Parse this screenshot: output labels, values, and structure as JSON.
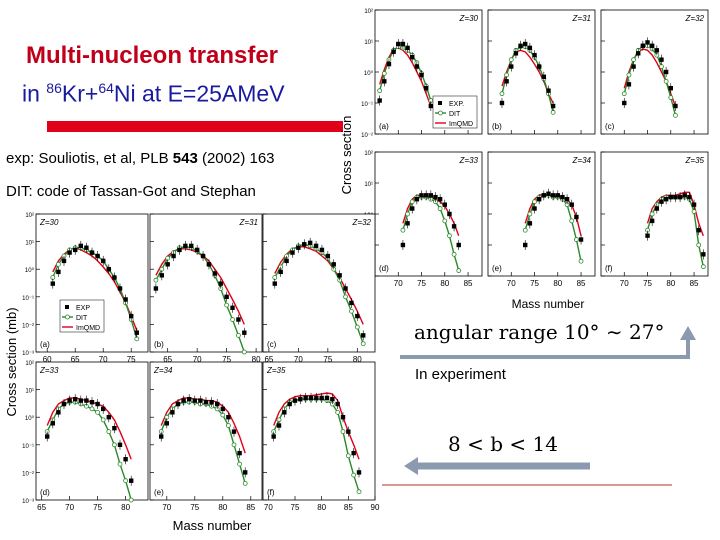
{
  "slide": {
    "title_line1": "Multi-nucleon transfer",
    "title_line2_prefix": "in ",
    "title_kr_mass": "86",
    "title_kr": "Kr+",
    "title_ni_mass": "64",
    "title_ni_rest": "Ni at E=25AMeV",
    "ref_exp_prefix": "exp: Souliotis, et al, PLB ",
    "ref_exp_volume": "543",
    "ref_exp_suffix": " (2002) 163",
    "ref_dit": "DIT: code of Tassan-Got and Stephan",
    "angular_range": "angular range 10° ∼ 27°",
    "in_experiment": "In experiment",
    "impact_range": "8 < b < 14"
  },
  "colors": {
    "exp": "#000000",
    "dit": "#2a8a2a",
    "imqmd": "#e0001a",
    "title": "#c0001a"
  },
  "chart_data": [
    {
      "type": "scatter",
      "figure": "top-right",
      "ylabel": "Cross section",
      "xlabel": "Mass number",
      "legend_entries": [
        "EXP.",
        "DIT",
        "ImQMD"
      ],
      "legend_placement": "bottom-right of panel (a)",
      "y_scale": "log",
      "y_tick_labels": [
        "10²",
        "10¹",
        "10⁰",
        "10⁻¹",
        "10⁻²"
      ],
      "ylim": [
        0.01,
        100
      ],
      "x_ticks": [
        70,
        75,
        80,
        85
      ],
      "xlim": [
        65,
        88
      ],
      "panels": [
        {
          "label": "(a)",
          "z_label": "Z=30",
          "x": [
            66,
            67,
            68,
            69,
            70,
            71,
            72,
            73,
            74,
            75,
            76,
            77
          ],
          "exp": [
            0.12,
            0.5,
            1.8,
            4.5,
            8,
            8,
            6,
            3,
            1.5,
            0.8,
            0.3,
            0.08
          ],
          "dit": [
            0.25,
            0.9,
            2.5,
            5,
            6.5,
            6,
            5,
            3.5,
            2,
            0.9,
            0.35,
            0.12
          ],
          "imqmd": [
            0.4,
            1.2,
            3,
            5.5,
            6,
            5,
            3.5,
            2,
            1,
            0.5,
            0.2,
            0.08
          ]
        },
        {
          "label": "(b)",
          "z_label": "Z=31",
          "x": [
            68,
            69,
            70,
            71,
            72,
            73,
            74,
            75,
            76,
            77,
            78,
            79
          ],
          "exp": [
            0.1,
            0.5,
            1.5,
            4,
            7,
            8,
            6,
            3.5,
            1.5,
            0.7,
            0.25,
            0.08
          ],
          "dit": [
            0.2,
            0.8,
            2.5,
            5,
            6.5,
            6.5,
            5,
            3,
            1.5,
            0.6,
            0.2,
            0.05
          ],
          "imqmd": [
            0.35,
            1,
            2.5,
            4.5,
            5,
            4.5,
            3,
            1.8,
            1,
            0.5,
            0.2,
            0.1
          ]
        },
        {
          "label": "(c)",
          "z_label": "Z=32",
          "x": [
            70,
            71,
            72,
            73,
            74,
            75,
            76,
            77,
            78,
            79,
            80,
            81
          ],
          "exp": [
            0.1,
            0.4,
            1.5,
            4,
            7,
            9,
            7,
            5,
            2.5,
            1,
            0.3,
            0.08
          ],
          "dit": [
            0.2,
            0.8,
            2.5,
            5,
            7,
            7,
            5.5,
            3.5,
            1.5,
            0.5,
            0.15,
            0.04
          ],
          "imqmd": [
            0.3,
            1,
            2.5,
            4.5,
            5.5,
            5,
            3.5,
            2,
            1,
            0.5,
            0.2,
            0.08
          ]
        },
        {
          "label": "(d)",
          "z_label": "Z=33",
          "x": [
            71,
            72,
            73,
            74,
            75,
            76,
            77,
            78,
            79,
            80,
            81,
            82,
            83
          ],
          "exp": [
            0.1,
            0.5,
            1.5,
            3,
            4,
            4,
            4,
            3.5,
            3,
            2,
            1,
            0.4,
            0.1
          ],
          "dit": [
            0.3,
            1,
            2.5,
            3.5,
            3.5,
            3.5,
            3,
            2.5,
            1.5,
            0.6,
            0.2,
            0.05,
            0.015
          ],
          "imqmd": [
            0.5,
            1.5,
            3,
            4,
            4,
            3.5,
            3.5,
            3,
            2.5,
            1.8,
            1,
            0.5,
            0.2
          ]
        },
        {
          "label": "(e)",
          "z_label": "Z=34",
          "x": [
            73,
            74,
            75,
            76,
            77,
            78,
            79,
            80,
            81,
            82,
            83,
            84,
            85
          ],
          "exp": [
            0.1,
            0.5,
            1.5,
            3,
            4,
            4.5,
            4,
            4,
            3.5,
            3,
            2,
            0.8,
            0.15
          ],
          "dit": [
            0.3,
            1,
            2.5,
            3.5,
            4,
            4,
            3.5,
            3.5,
            3,
            2,
            0.6,
            0.15,
            0.03
          ],
          "imqmd": [
            0.5,
            1.5,
            3,
            4,
            4.5,
            4,
            4,
            4,
            3.5,
            3,
            2,
            0.8,
            0.2
          ]
        },
        {
          "label": "(f)",
          "z_label": "Z=35",
          "x": [
            75,
            76,
            77,
            78,
            79,
            80,
            81,
            82,
            83,
            84,
            85,
            86,
            87
          ],
          "exp": [
            0.2,
            0.6,
            1.5,
            2.5,
            3,
            3.5,
            3.5,
            3.5,
            4,
            3.5,
            2,
            0.3,
            0.05
          ],
          "dit": [
            0.3,
            1,
            2,
            3,
            3.5,
            3.5,
            3.5,
            3.5,
            3.5,
            3,
            1.2,
            0.1,
            0.02
          ],
          "imqmd": [
            0.5,
            1.5,
            2.5,
            3.5,
            4,
            4,
            4,
            4.5,
            5,
            5,
            2,
            0.5,
            0.2
          ]
        }
      ]
    },
    {
      "type": "scatter",
      "figure": "bottom-left",
      "ylabel": "Cross section (mb)",
      "xlabel": "Mass number",
      "legend_entries": [
        "EXP",
        "DIT",
        "ImQMD"
      ],
      "legend_placement": "center-left of panel (a)",
      "y_scale": "log",
      "y_tick_labels": [
        "10²",
        "10¹",
        "10⁰",
        "10⁻¹",
        "10⁻²",
        "10⁻³"
      ],
      "ylim": [
        0.001,
        100
      ],
      "panels": [
        {
          "label": "(a)",
          "z_label": "Z=30",
          "x_ticks": [
            60,
            65,
            70,
            75
          ],
          "xlim": [
            58,
            78
          ],
          "x": [
            61,
            62,
            63,
            64,
            65,
            66,
            67,
            68,
            69,
            70,
            71,
            72,
            73,
            74,
            75,
            76
          ],
          "exp": [
            0.3,
            0.8,
            2,
            4,
            5,
            7,
            6,
            4,
            3,
            2,
            1,
            0.5,
            0.2,
            0.08,
            0.02,
            0.005
          ],
          "dit": [
            0.5,
            1.5,
            3,
            5,
            6,
            6,
            5,
            4,
            3,
            2,
            1,
            0.5,
            0.2,
            0.06,
            0.015,
            0.003
          ],
          "imqmd": [
            0.8,
            2,
            3.5,
            5,
            6,
            5,
            4,
            3,
            2,
            1.2,
            0.7,
            0.35,
            0.15,
            0.06,
            0.02,
            0.006
          ]
        },
        {
          "label": "(b)",
          "z_label": "Z=31",
          "x_ticks": [
            65,
            70,
            75,
            80
          ],
          "xlim": [
            62,
            81
          ],
          "x": [
            63,
            64,
            65,
            66,
            67,
            68,
            69,
            70,
            71,
            72,
            73,
            74,
            75,
            76,
            77,
            78
          ],
          "exp": [
            0.2,
            0.6,
            1.5,
            3,
            5,
            7,
            7,
            5,
            3,
            1.5,
            0.7,
            0.3,
            0.1,
            0.04,
            0.015,
            0.005
          ],
          "dit": [
            0.4,
            1,
            2.5,
            4,
            6,
            6.5,
            6,
            4.5,
            3,
            1.5,
            0.6,
            0.2,
            0.05,
            0.015,
            0.004,
            0.001
          ],
          "imqmd": [
            0.6,
            1.5,
            3,
            4.5,
            5.5,
            5.5,
            5,
            4,
            3,
            2,
            1,
            0.5,
            0.2,
            0.08,
            0.03,
            0.01
          ]
        },
        {
          "label": "(c)",
          "z_label": "Z=32",
          "x_ticks": [
            65,
            70,
            75,
            80
          ],
          "xlim": [
            64,
            83
          ],
          "x": [
            66,
            67,
            68,
            69,
            70,
            71,
            72,
            73,
            74,
            75,
            76,
            77,
            78,
            79,
            80,
            81
          ],
          "exp": [
            0.3,
            0.8,
            2,
            4,
            6,
            8,
            9,
            7,
            5,
            3,
            1.5,
            0.6,
            0.2,
            0.06,
            0.02,
            0.004
          ],
          "dit": [
            0.5,
            1.2,
            3,
            5,
            7,
            8,
            7,
            5.5,
            4,
            2.5,
            1,
            0.4,
            0.1,
            0.03,
            0.008,
            0.002
          ],
          "imqmd": [
            0.7,
            1.8,
            3.5,
            5.5,
            6.5,
            6.5,
            5.5,
            4.5,
            3,
            2,
            1,
            0.5,
            0.2,
            0.08,
            0.03,
            0.01
          ]
        },
        {
          "label": "(d)",
          "z_label": "Z=33",
          "x_ticks": [
            65,
            70,
            75,
            80
          ],
          "xlim": [
            64,
            84
          ],
          "x": [
            66,
            67,
            68,
            69,
            70,
            71,
            72,
            73,
            74,
            75,
            76,
            77,
            78,
            79,
            80,
            81
          ],
          "exp": [
            0.2,
            0.6,
            1.5,
            3,
            4,
            4.5,
            4,
            4,
            3.5,
            3,
            2,
            1,
            0.4,
            0.1,
            0.03,
            0.005
          ],
          "dit": [
            0.3,
            0.8,
            2,
            3,
            3.5,
            3.5,
            3,
            2.5,
            2,
            1.5,
            0.8,
            0.3,
            0.1,
            0.02,
            0.005,
            0.001
          ],
          "imqmd": [
            0.5,
            1.5,
            3,
            4,
            5,
            5,
            4.5,
            4,
            3.5,
            3,
            2.5,
            1.5,
            0.8,
            0.3,
            0.1,
            0.03
          ]
        },
        {
          "label": "(e)",
          "z_label": "Z=34",
          "x_ticks": [
            70,
            75,
            80,
            85
          ],
          "xlim": [
            67,
            87
          ],
          "x": [
            69,
            70,
            71,
            72,
            73,
            74,
            75,
            76,
            77,
            78,
            79,
            80,
            81,
            82,
            83,
            84
          ],
          "exp": [
            0.2,
            0.6,
            1.5,
            3,
            4,
            4.5,
            4,
            4,
            3.5,
            3.5,
            3,
            2,
            1,
            0.3,
            0.05,
            0.01
          ],
          "dit": [
            0.3,
            1,
            2,
            3,
            3.5,
            3.5,
            3.5,
            3,
            3,
            2.5,
            2,
            1.2,
            0.5,
            0.1,
            0.02,
            0.004
          ],
          "imqmd": [
            0.5,
            1.5,
            3,
            4,
            5,
            5,
            4.5,
            4.5,
            4,
            4,
            3.5,
            2.5,
            1.5,
            0.6,
            0.2,
            0.05
          ]
        },
        {
          "label": "(f)",
          "z_label": "Z=35",
          "x_ticks": [
            70,
            75,
            80,
            85,
            90
          ],
          "xlim": [
            69,
            90
          ],
          "x": [
            71,
            72,
            73,
            74,
            75,
            76,
            77,
            78,
            79,
            80,
            81,
            82,
            83,
            84,
            85,
            86,
            87
          ],
          "exp": [
            0.2,
            0.5,
            1.5,
            3,
            4,
            4.5,
            5,
            5,
            5,
            5,
            5,
            4.5,
            3,
            1,
            0.3,
            0.05,
            0.01
          ],
          "dit": [
            0.3,
            0.8,
            2,
            3.5,
            4,
            4.5,
            4.5,
            4.5,
            4.5,
            4.5,
            4,
            3,
            1.5,
            0.3,
            0.04,
            0.008,
            0.002
          ],
          "imqmd": [
            0.5,
            1.5,
            3,
            4.5,
            5.5,
            6,
            6,
            6,
            6.5,
            7,
            7.5,
            7,
            4,
            1,
            0.3,
            0.1,
            0.03
          ]
        }
      ]
    }
  ]
}
